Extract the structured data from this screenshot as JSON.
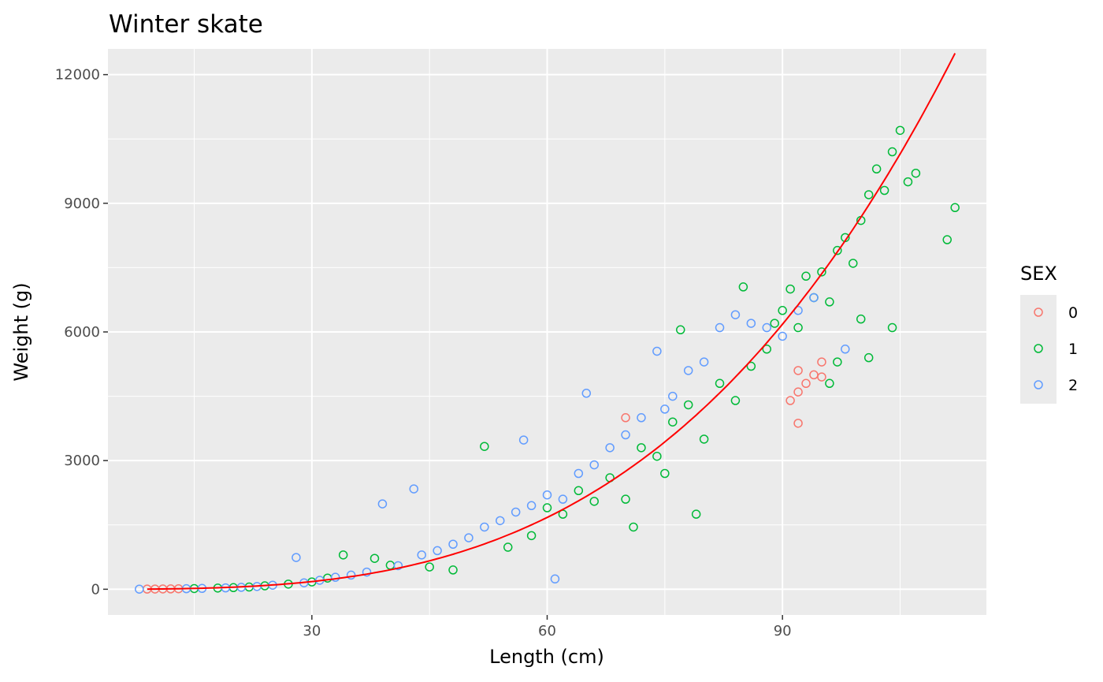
{
  "chart_data": {
    "type": "scatter",
    "title": "Winter skate",
    "xlabel": "Length (cm)",
    "ylabel": "Weight (g)",
    "xlim": [
      4,
      116
    ],
    "ylim": [
      -600,
      12600
    ],
    "x_ticks": [
      30,
      60,
      90
    ],
    "y_ticks": [
      0,
      3000,
      6000,
      9000,
      12000
    ],
    "grid": true,
    "background": "#ebebeb",
    "legend": {
      "title": "SEX",
      "position": "right"
    },
    "series": [
      {
        "name": "0",
        "color": "#f8766d",
        "marker": "open-circle",
        "points": [
          [
            9,
            4
          ],
          [
            10,
            5
          ],
          [
            11,
            7
          ],
          [
            12,
            9
          ],
          [
            13,
            12
          ],
          [
            70,
            4000
          ],
          [
            91,
            4400
          ],
          [
            92,
            3870
          ],
          [
            92,
            4600
          ],
          [
            93,
            4800
          ],
          [
            94,
            5000
          ],
          [
            95,
            4950
          ],
          [
            95,
            5300
          ],
          [
            92,
            5100
          ]
        ]
      },
      {
        "name": "1",
        "color": "#00ba38",
        "marker": "open-circle",
        "points": [
          [
            15,
            16
          ],
          [
            18,
            28
          ],
          [
            20,
            38
          ],
          [
            22,
            52
          ],
          [
            24,
            80
          ],
          [
            27,
            120
          ],
          [
            30,
            170
          ],
          [
            32,
            260
          ],
          [
            34,
            800
          ],
          [
            38,
            720
          ],
          [
            40,
            560
          ],
          [
            45,
            520
          ],
          [
            48,
            450
          ],
          [
            52,
            3330
          ],
          [
            55,
            980
          ],
          [
            58,
            1250
          ],
          [
            60,
            1900
          ],
          [
            62,
            1750
          ],
          [
            64,
            2300
          ],
          [
            66,
            2050
          ],
          [
            68,
            2600
          ],
          [
            70,
            2100
          ],
          [
            71,
            1450
          ],
          [
            72,
            3300
          ],
          [
            74,
            3100
          ],
          [
            75,
            2700
          ],
          [
            76,
            3900
          ],
          [
            77,
            6050
          ],
          [
            78,
            4300
          ],
          [
            79,
            1750
          ],
          [
            80,
            3500
          ],
          [
            82,
            4800
          ],
          [
            84,
            4400
          ],
          [
            85,
            7050
          ],
          [
            86,
            5200
          ],
          [
            88,
            5600
          ],
          [
            89,
            6200
          ],
          [
            90,
            6500
          ],
          [
            91,
            7000
          ],
          [
            92,
            6100
          ],
          [
            93,
            7300
          ],
          [
            94,
            6800
          ],
          [
            95,
            7400
          ],
          [
            96,
            6700
          ],
          [
            97,
            7900
          ],
          [
            98,
            8200
          ],
          [
            99,
            7600
          ],
          [
            100,
            8600
          ],
          [
            101,
            9200
          ],
          [
            102,
            9800
          ],
          [
            103,
            9300
          ],
          [
            104,
            10200
          ],
          [
            105,
            10700
          ],
          [
            106,
            9500
          ],
          [
            107,
            9700
          ],
          [
            111,
            8150
          ],
          [
            112,
            8900
          ],
          [
            100,
            6300
          ],
          [
            101,
            5400
          ],
          [
            104,
            6100
          ],
          [
            97,
            5300
          ],
          [
            96,
            4800
          ]
        ]
      },
      {
        "name": "2",
        "color": "#619cff",
        "marker": "open-circle",
        "points": [
          [
            8,
            3
          ],
          [
            14,
            13
          ],
          [
            16,
            20
          ],
          [
            19,
            32
          ],
          [
            21,
            45
          ],
          [
            23,
            65
          ],
          [
            25,
            95
          ],
          [
            28,
            740
          ],
          [
            29,
            150
          ],
          [
            31,
            210
          ],
          [
            33,
            280
          ],
          [
            35,
            330
          ],
          [
            37,
            400
          ],
          [
            39,
            1990
          ],
          [
            41,
            550
          ],
          [
            43,
            2340
          ],
          [
            44,
            800
          ],
          [
            46,
            900
          ],
          [
            48,
            1050
          ],
          [
            50,
            1200
          ],
          [
            52,
            1450
          ],
          [
            54,
            1600
          ],
          [
            56,
            1800
          ],
          [
            57,
            3480
          ],
          [
            58,
            1950
          ],
          [
            60,
            2200
          ],
          [
            61,
            240
          ],
          [
            62,
            2100
          ],
          [
            64,
            2700
          ],
          [
            65,
            4570
          ],
          [
            66,
            2900
          ],
          [
            68,
            3300
          ],
          [
            70,
            3600
          ],
          [
            72,
            4000
          ],
          [
            74,
            5550
          ],
          [
            75,
            4200
          ],
          [
            76,
            4500
          ],
          [
            78,
            5100
          ],
          [
            80,
            5300
          ],
          [
            82,
            6100
          ],
          [
            84,
            6400
          ],
          [
            86,
            6200
          ],
          [
            88,
            6100
          ],
          [
            90,
            5900
          ],
          [
            92,
            6500
          ],
          [
            94,
            6800
          ],
          [
            98,
            5600
          ]
        ]
      }
    ],
    "fit_line": {
      "color": "#ff0000",
      "model": "power",
      "a": 0.00315,
      "b": 3.22,
      "x_range": [
        9,
        112
      ]
    }
  }
}
